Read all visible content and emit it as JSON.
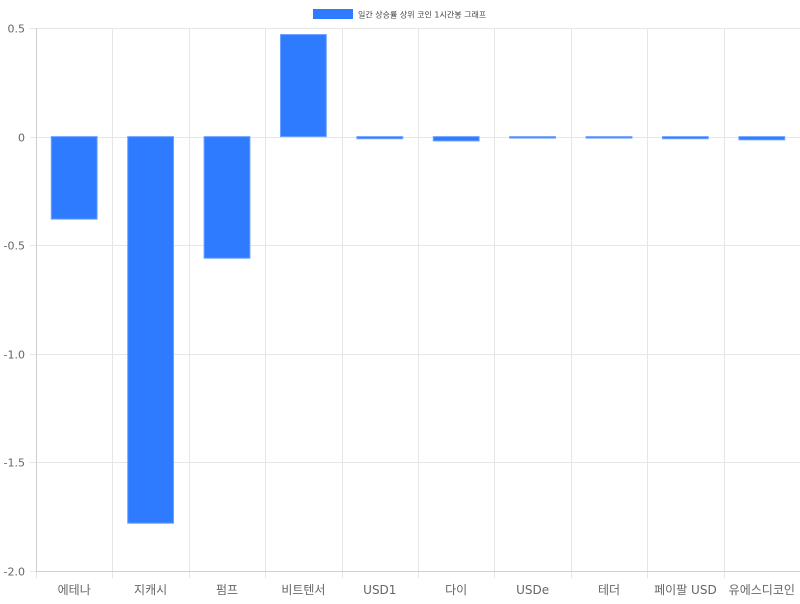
{
  "chart_data": {
    "type": "bar",
    "categories": [
      "에테나",
      "지캐시",
      "펌프",
      "비트텐서",
      "USD1",
      "다이",
      "USDe",
      "테더",
      "페이팔 USD",
      "유에스디코인"
    ],
    "series": [
      {
        "name": "일간 상승률 상위 코인 1시간봉 그래프",
        "values": [
          -0.38,
          -1.78,
          -0.56,
          0.47,
          -0.01,
          -0.02,
          0.0,
          -0.005,
          -0.01,
          -0.015
        ]
      }
    ],
    "ylim": [
      -2.0,
      0.5
    ],
    "yticks": [
      "0.5",
      "0",
      "-0.5",
      "-1.0",
      "-1.5",
      "-2.0"
    ],
    "grid": true,
    "legend_position": "top-center",
    "colors": {
      "bar_fill": "#2e7bff",
      "bar_stroke": "#6ea3ff",
      "grid": "#e6e6e6",
      "axis": "#cfcfcf",
      "tick_text": "#666666"
    }
  }
}
